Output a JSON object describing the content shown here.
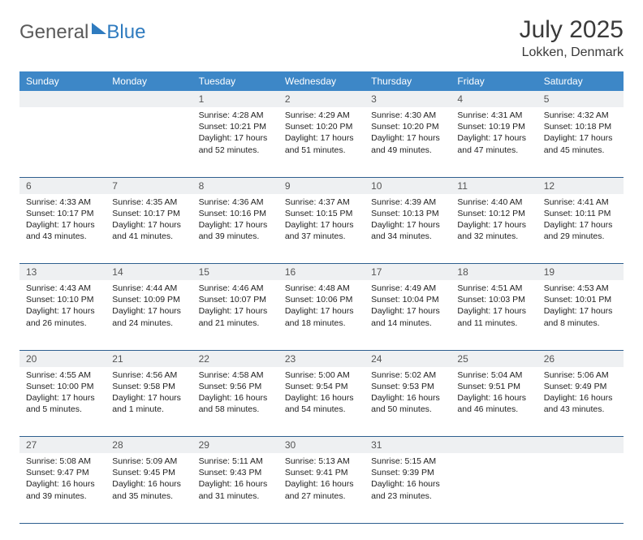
{
  "brand": {
    "part1": "General",
    "part2": "Blue"
  },
  "title": "July 2025",
  "location": "Lokken, Denmark",
  "colors": {
    "header_bg": "#3d87c7",
    "daynum_bg": "#eef0f2",
    "row_border": "#2f5f8f",
    "brand_gray": "#5a5a5a",
    "brand_blue": "#2f7bbf"
  },
  "weekdays": [
    "Sunday",
    "Monday",
    "Tuesday",
    "Wednesday",
    "Thursday",
    "Friday",
    "Saturday"
  ],
  "weeks": [
    {
      "nums": [
        "",
        "",
        "1",
        "2",
        "3",
        "4",
        "5"
      ],
      "cells": [
        null,
        null,
        {
          "sunrise": "Sunrise: 4:28 AM",
          "sunset": "Sunset: 10:21 PM",
          "daylight": "Daylight: 17 hours and 52 minutes."
        },
        {
          "sunrise": "Sunrise: 4:29 AM",
          "sunset": "Sunset: 10:20 PM",
          "daylight": "Daylight: 17 hours and 51 minutes."
        },
        {
          "sunrise": "Sunrise: 4:30 AM",
          "sunset": "Sunset: 10:20 PM",
          "daylight": "Daylight: 17 hours and 49 minutes."
        },
        {
          "sunrise": "Sunrise: 4:31 AM",
          "sunset": "Sunset: 10:19 PM",
          "daylight": "Daylight: 17 hours and 47 minutes."
        },
        {
          "sunrise": "Sunrise: 4:32 AM",
          "sunset": "Sunset: 10:18 PM",
          "daylight": "Daylight: 17 hours and 45 minutes."
        }
      ]
    },
    {
      "nums": [
        "6",
        "7",
        "8",
        "9",
        "10",
        "11",
        "12"
      ],
      "cells": [
        {
          "sunrise": "Sunrise: 4:33 AM",
          "sunset": "Sunset: 10:17 PM",
          "daylight": "Daylight: 17 hours and 43 minutes."
        },
        {
          "sunrise": "Sunrise: 4:35 AM",
          "sunset": "Sunset: 10:17 PM",
          "daylight": "Daylight: 17 hours and 41 minutes."
        },
        {
          "sunrise": "Sunrise: 4:36 AM",
          "sunset": "Sunset: 10:16 PM",
          "daylight": "Daylight: 17 hours and 39 minutes."
        },
        {
          "sunrise": "Sunrise: 4:37 AM",
          "sunset": "Sunset: 10:15 PM",
          "daylight": "Daylight: 17 hours and 37 minutes."
        },
        {
          "sunrise": "Sunrise: 4:39 AM",
          "sunset": "Sunset: 10:13 PM",
          "daylight": "Daylight: 17 hours and 34 minutes."
        },
        {
          "sunrise": "Sunrise: 4:40 AM",
          "sunset": "Sunset: 10:12 PM",
          "daylight": "Daylight: 17 hours and 32 minutes."
        },
        {
          "sunrise": "Sunrise: 4:41 AM",
          "sunset": "Sunset: 10:11 PM",
          "daylight": "Daylight: 17 hours and 29 minutes."
        }
      ]
    },
    {
      "nums": [
        "13",
        "14",
        "15",
        "16",
        "17",
        "18",
        "19"
      ],
      "cells": [
        {
          "sunrise": "Sunrise: 4:43 AM",
          "sunset": "Sunset: 10:10 PM",
          "daylight": "Daylight: 17 hours and 26 minutes."
        },
        {
          "sunrise": "Sunrise: 4:44 AM",
          "sunset": "Sunset: 10:09 PM",
          "daylight": "Daylight: 17 hours and 24 minutes."
        },
        {
          "sunrise": "Sunrise: 4:46 AM",
          "sunset": "Sunset: 10:07 PM",
          "daylight": "Daylight: 17 hours and 21 minutes."
        },
        {
          "sunrise": "Sunrise: 4:48 AM",
          "sunset": "Sunset: 10:06 PM",
          "daylight": "Daylight: 17 hours and 18 minutes."
        },
        {
          "sunrise": "Sunrise: 4:49 AM",
          "sunset": "Sunset: 10:04 PM",
          "daylight": "Daylight: 17 hours and 14 minutes."
        },
        {
          "sunrise": "Sunrise: 4:51 AM",
          "sunset": "Sunset: 10:03 PM",
          "daylight": "Daylight: 17 hours and 11 minutes."
        },
        {
          "sunrise": "Sunrise: 4:53 AM",
          "sunset": "Sunset: 10:01 PM",
          "daylight": "Daylight: 17 hours and 8 minutes."
        }
      ]
    },
    {
      "nums": [
        "20",
        "21",
        "22",
        "23",
        "24",
        "25",
        "26"
      ],
      "cells": [
        {
          "sunrise": "Sunrise: 4:55 AM",
          "sunset": "Sunset: 10:00 PM",
          "daylight": "Daylight: 17 hours and 5 minutes."
        },
        {
          "sunrise": "Sunrise: 4:56 AM",
          "sunset": "Sunset: 9:58 PM",
          "daylight": "Daylight: 17 hours and 1 minute."
        },
        {
          "sunrise": "Sunrise: 4:58 AM",
          "sunset": "Sunset: 9:56 PM",
          "daylight": "Daylight: 16 hours and 58 minutes."
        },
        {
          "sunrise": "Sunrise: 5:00 AM",
          "sunset": "Sunset: 9:54 PM",
          "daylight": "Daylight: 16 hours and 54 minutes."
        },
        {
          "sunrise": "Sunrise: 5:02 AM",
          "sunset": "Sunset: 9:53 PM",
          "daylight": "Daylight: 16 hours and 50 minutes."
        },
        {
          "sunrise": "Sunrise: 5:04 AM",
          "sunset": "Sunset: 9:51 PM",
          "daylight": "Daylight: 16 hours and 46 minutes."
        },
        {
          "sunrise": "Sunrise: 5:06 AM",
          "sunset": "Sunset: 9:49 PM",
          "daylight": "Daylight: 16 hours and 43 minutes."
        }
      ]
    },
    {
      "nums": [
        "27",
        "28",
        "29",
        "30",
        "31",
        "",
        ""
      ],
      "cells": [
        {
          "sunrise": "Sunrise: 5:08 AM",
          "sunset": "Sunset: 9:47 PM",
          "daylight": "Daylight: 16 hours and 39 minutes."
        },
        {
          "sunrise": "Sunrise: 5:09 AM",
          "sunset": "Sunset: 9:45 PM",
          "daylight": "Daylight: 16 hours and 35 minutes."
        },
        {
          "sunrise": "Sunrise: 5:11 AM",
          "sunset": "Sunset: 9:43 PM",
          "daylight": "Daylight: 16 hours and 31 minutes."
        },
        {
          "sunrise": "Sunrise: 5:13 AM",
          "sunset": "Sunset: 9:41 PM",
          "daylight": "Daylight: 16 hours and 27 minutes."
        },
        {
          "sunrise": "Sunrise: 5:15 AM",
          "sunset": "Sunset: 9:39 PM",
          "daylight": "Daylight: 16 hours and 23 minutes."
        },
        null,
        null
      ]
    }
  ]
}
